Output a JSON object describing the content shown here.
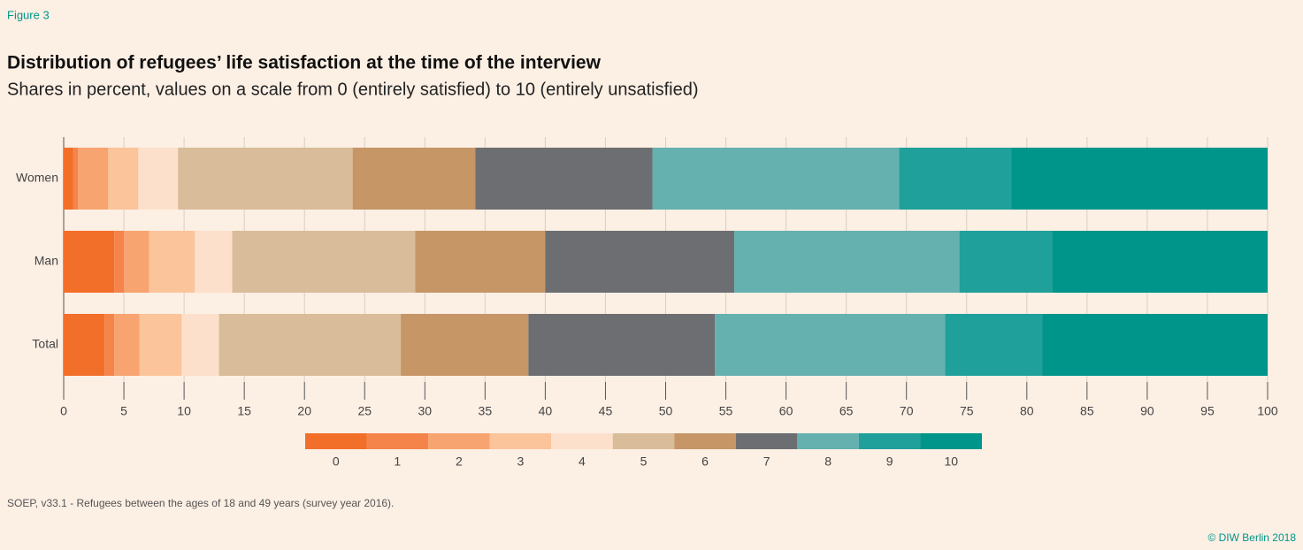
{
  "figure_label": "Figure 3",
  "chart_data": {
    "type": "stacked-barh",
    "title": "Distribution of refugees’ life satisfaction at the time of the interview",
    "subtitle": "Shares in percent, values on a scale from 0 (entirely satisfied) to 10 (entirely unsatisfied)",
    "categories": [
      "Women",
      "Man",
      "Total"
    ],
    "series": [
      {
        "name": "0",
        "color": "#f26f2a",
        "values": [
          0.8,
          4.2,
          3.4
        ]
      },
      {
        "name": "1",
        "color": "#f5844a",
        "values": [
          0.4,
          0.8,
          0.8
        ]
      },
      {
        "name": "2",
        "color": "#f8a470",
        "values": [
          2.5,
          2.1,
          2.1
        ]
      },
      {
        "name": "3",
        "color": "#fbc49a",
        "values": [
          2.5,
          3.8,
          3.5
        ]
      },
      {
        "name": "4",
        "color": "#fde0cb",
        "values": [
          3.3,
          3.1,
          3.1
        ]
      },
      {
        "name": "5",
        "color": "#d9bc99",
        "values": [
          14.5,
          15.2,
          15.1
        ]
      },
      {
        "name": "6",
        "color": "#c69666",
        "values": [
          10.2,
          10.8,
          10.6
        ]
      },
      {
        "name": "7",
        "color": "#6d6e71",
        "values": [
          14.7,
          15.7,
          15.5
        ]
      },
      {
        "name": "8",
        "color": "#65b1b0",
        "values": [
          20.5,
          18.7,
          19.1
        ]
      },
      {
        "name": "9",
        "color": "#1fa09a",
        "values": [
          9.3,
          7.7,
          8.1
        ]
      },
      {
        "name": "10",
        "color": "#00958a",
        "values": [
          21.3,
          17.9,
          18.7
        ]
      }
    ],
    "xlim": [
      0,
      100
    ],
    "xticks": [
      0,
      5,
      10,
      15,
      20,
      25,
      30,
      35,
      40,
      45,
      50,
      55,
      60,
      65,
      70,
      75,
      80,
      85,
      90,
      95,
      100
    ],
    "grid": true,
    "legend": "bottom"
  },
  "source": "SOEP, v33.1 - Refugees between the ages of 18 and 49 years (survey year 2016).",
  "copyright": "© DIW Berlin 2018"
}
